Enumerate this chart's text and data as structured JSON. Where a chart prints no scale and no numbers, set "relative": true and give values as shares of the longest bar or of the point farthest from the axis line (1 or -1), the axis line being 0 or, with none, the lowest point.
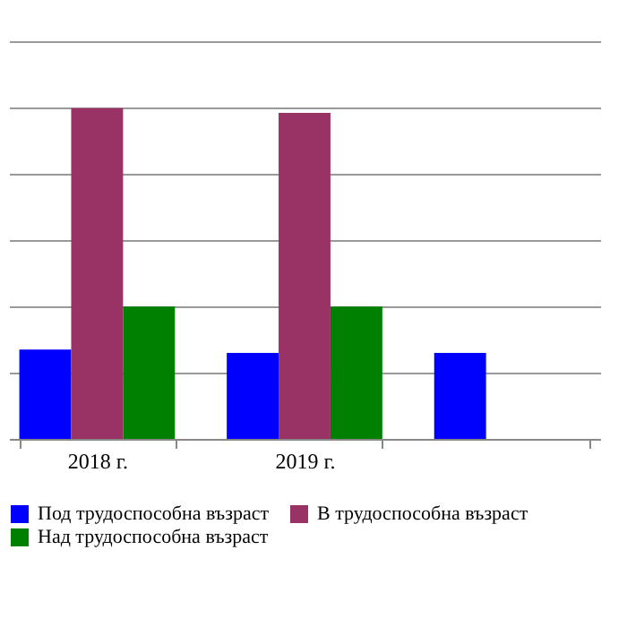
{
  "chart_data": {
    "type": "bar",
    "relative": true,
    "categories": [
      "2018 г.",
      "2019 г.",
      null
    ],
    "series": [
      {
        "name": "Под трудоспособна възраст",
        "color": "#0000ff",
        "values": [
          0.27,
          0.26,
          0.26
        ]
      },
      {
        "name": "В трудоспособна възраст",
        "color": "#993366",
        "values": [
          1,
          0.986,
          null
        ]
      },
      {
        "name": "Над трудоспособна възраст",
        "color": "#008000",
        "values": [
          0.4,
          0.4,
          null
        ]
      }
    ],
    "grid": "y",
    "legend": "bottom"
  }
}
